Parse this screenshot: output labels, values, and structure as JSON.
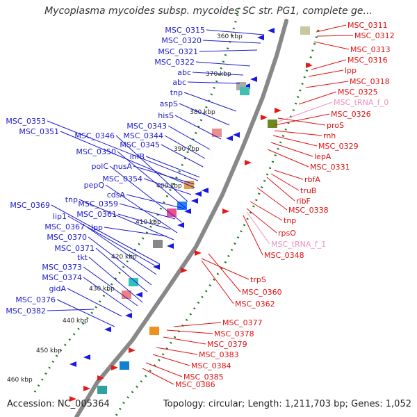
{
  "title": "Mycoplasma mycoides subsp. mycoides SC str. PG1, complete ge...",
  "footer": {
    "accession": "Accession: NC_005364",
    "summary": "Topology: circular; Length: 1,211,703 bp; Genes: 1,052"
  },
  "colors": {
    "reverse_label": "#1a1acc",
    "forward_label": "#e01010",
    "trna_label": "#f090c0",
    "backbone": "#888888",
    "tick": "#1a7a1a"
  },
  "kbp_ticks": [
    "360 kbp",
    "370 kbp",
    "380 kbp",
    "390 kbp",
    "400 kbp",
    "410 kbp",
    "420 kbp",
    "430 kbp",
    "440 kbp",
    "450 kbp",
    "460 kbp"
  ],
  "reverse_genes": [
    "MSC_0315",
    "MSC_0320",
    "MSC_0321",
    "MSC_0322",
    "abc",
    "abc",
    "tnp",
    "aspS",
    "hisS",
    "MSC_0353",
    "MSC_0343",
    "MSC_0351",
    "MSC_0344",
    "MSC_0346",
    "MSC_0345",
    "MSC_0350",
    "infB",
    "nusA",
    "polC",
    "MSC_0354",
    "pepQ",
    "cdsA",
    "tnp",
    "MSC_0369",
    "MSC_0359",
    "lip1",
    "MSC_0361",
    "MSC_0367",
    "lpp",
    "MSC_0370",
    "MSC_0371",
    "tkt",
    "MSC_0373",
    "MSC_0374",
    "gidA",
    "MSC_0376",
    "MSC_0382"
  ],
  "forward_genes": [
    "MSC_0311",
    "MSC_0312",
    "MSC_0313",
    "MSC_0316",
    "lpp",
    "MSC_0318",
    "MSC_0325",
    "MSC_tRNA_f_0",
    "MSC_0326",
    "proS",
    "rnh",
    "MSC_0329",
    "lepA",
    "MSC_0331",
    "rbfA",
    "truB",
    "ribF",
    "MSC_0338",
    "tnp",
    "rpsO",
    "MSC_tRNA_f_1",
    "MSC_0348",
    "trpS",
    "MSC_0360",
    "MSC_0362",
    "MSC_0377",
    "MSC_0378",
    "MSC_0379",
    "MSC_0383",
    "MSC_0384",
    "MSC_0385",
    "MSC_0386"
  ]
}
